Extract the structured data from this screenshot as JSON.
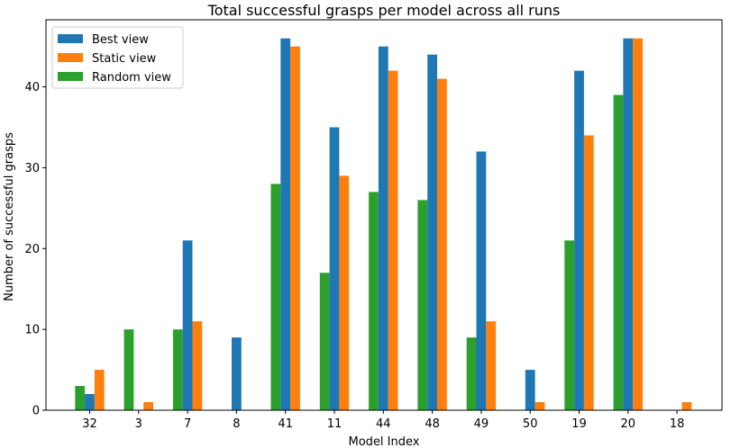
{
  "chart_data": {
    "type": "bar",
    "title": "Total successful grasps per model across all runs",
    "xlabel": "Model Index",
    "ylabel": "Number of successful grasps",
    "categories": [
      "32",
      "3",
      "7",
      "8",
      "41",
      "11",
      "44",
      "48",
      "49",
      "50",
      "19",
      "20",
      "18"
    ],
    "series": [
      {
        "name": "Best view",
        "color": "#1f77b4",
        "values": [
          2,
          0,
          21,
          9,
          46,
          35,
          45,
          44,
          32,
          5,
          42,
          46,
          0
        ]
      },
      {
        "name": "Static view",
        "color": "#ff7f0e",
        "values": [
          5,
          1,
          11,
          0,
          45,
          29,
          42,
          41,
          11,
          1,
          34,
          46,
          1
        ]
      },
      {
        "name": "Random view",
        "color": "#2ca02c",
        "values": [
          3,
          10,
          10,
          0,
          28,
          17,
          27,
          26,
          9,
          0,
          21,
          39,
          0
        ]
      }
    ],
    "ylim": [
      0,
      48.3
    ],
    "yticks": [
      0,
      10,
      20,
      30,
      40
    ],
    "grid": false,
    "legend_position": "top-left"
  }
}
